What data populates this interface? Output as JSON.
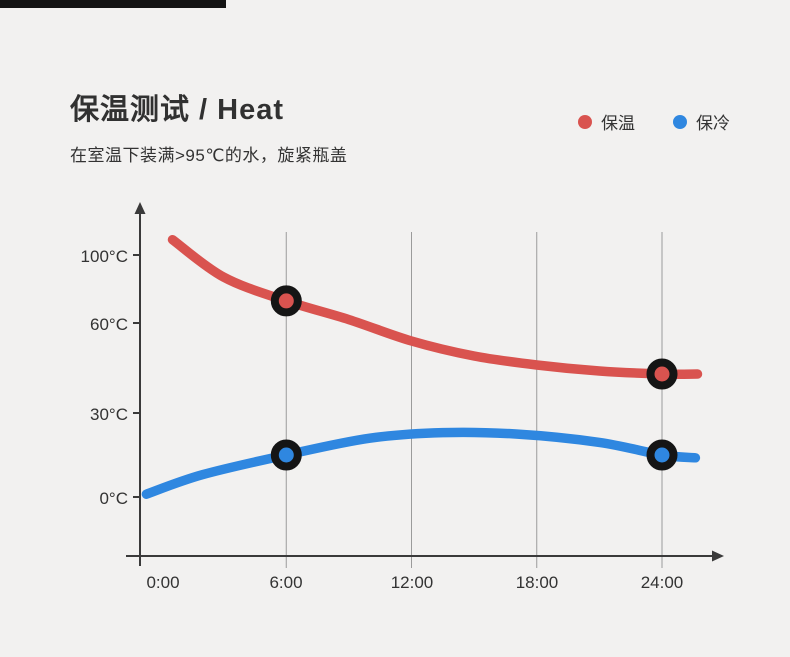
{
  "page": {
    "background_color": "#f2f1f0",
    "accent_bar_color": "#141414"
  },
  "header": {
    "title": "保温测试 / Heat",
    "subtitle": "在室温下装满>95℃的水，旋紧瓶盖"
  },
  "legend": {
    "items": [
      {
        "label": "保温",
        "color": "#d9534f"
      },
      {
        "label": "保冷",
        "color": "#2f87e0"
      }
    ]
  },
  "chart_data": {
    "type": "line",
    "title": "保温测试 / Heat",
    "subtitle": "在室温下装满>95℃的水，旋紧瓶盖",
    "xlabel": "",
    "ylabel": "",
    "ylim": [
      0,
      110
    ],
    "grid": "vertical",
    "legend_position": "top-right",
    "x_ticks": [
      {
        "label": "0:00",
        "hour": 0
      },
      {
        "label": "6:00",
        "hour": 6
      },
      {
        "label": "12:00",
        "hour": 12
      },
      {
        "label": "18:00",
        "hour": 18
      },
      {
        "label": "24:00",
        "hour": 24
      }
    ],
    "y_ticks": [
      {
        "label": "100°C",
        "value": 100
      },
      {
        "label": "60°C",
        "value": 60
      },
      {
        "label": "30°C",
        "value": 30
      },
      {
        "label": "0°C",
        "value": 0
      }
    ],
    "series": [
      {
        "name": "保温",
        "color": "#d9534f",
        "x": [
          0.55,
          3,
          6,
          9,
          12,
          15,
          18,
          21,
          24,
          25.7
        ],
        "values": [
          109,
          87,
          73,
          62,
          54,
          49,
          46,
          44,
          43,
          43
        ],
        "markers": [
          {
            "x": 6,
            "value": 73
          },
          {
            "x": 24,
            "value": 43
          }
        ]
      },
      {
        "name": "保冷",
        "color": "#2f87e0",
        "x": [
          -0.7,
          2,
          6,
          10,
          13.5,
          17,
          21,
          24,
          25.6
        ],
        "values": [
          1,
          8,
          15,
          21,
          23,
          22.5,
          19.5,
          15,
          14
        ],
        "markers": [
          {
            "x": 6,
            "value": 15
          },
          {
            "x": 24,
            "value": 15
          }
        ]
      }
    ]
  }
}
